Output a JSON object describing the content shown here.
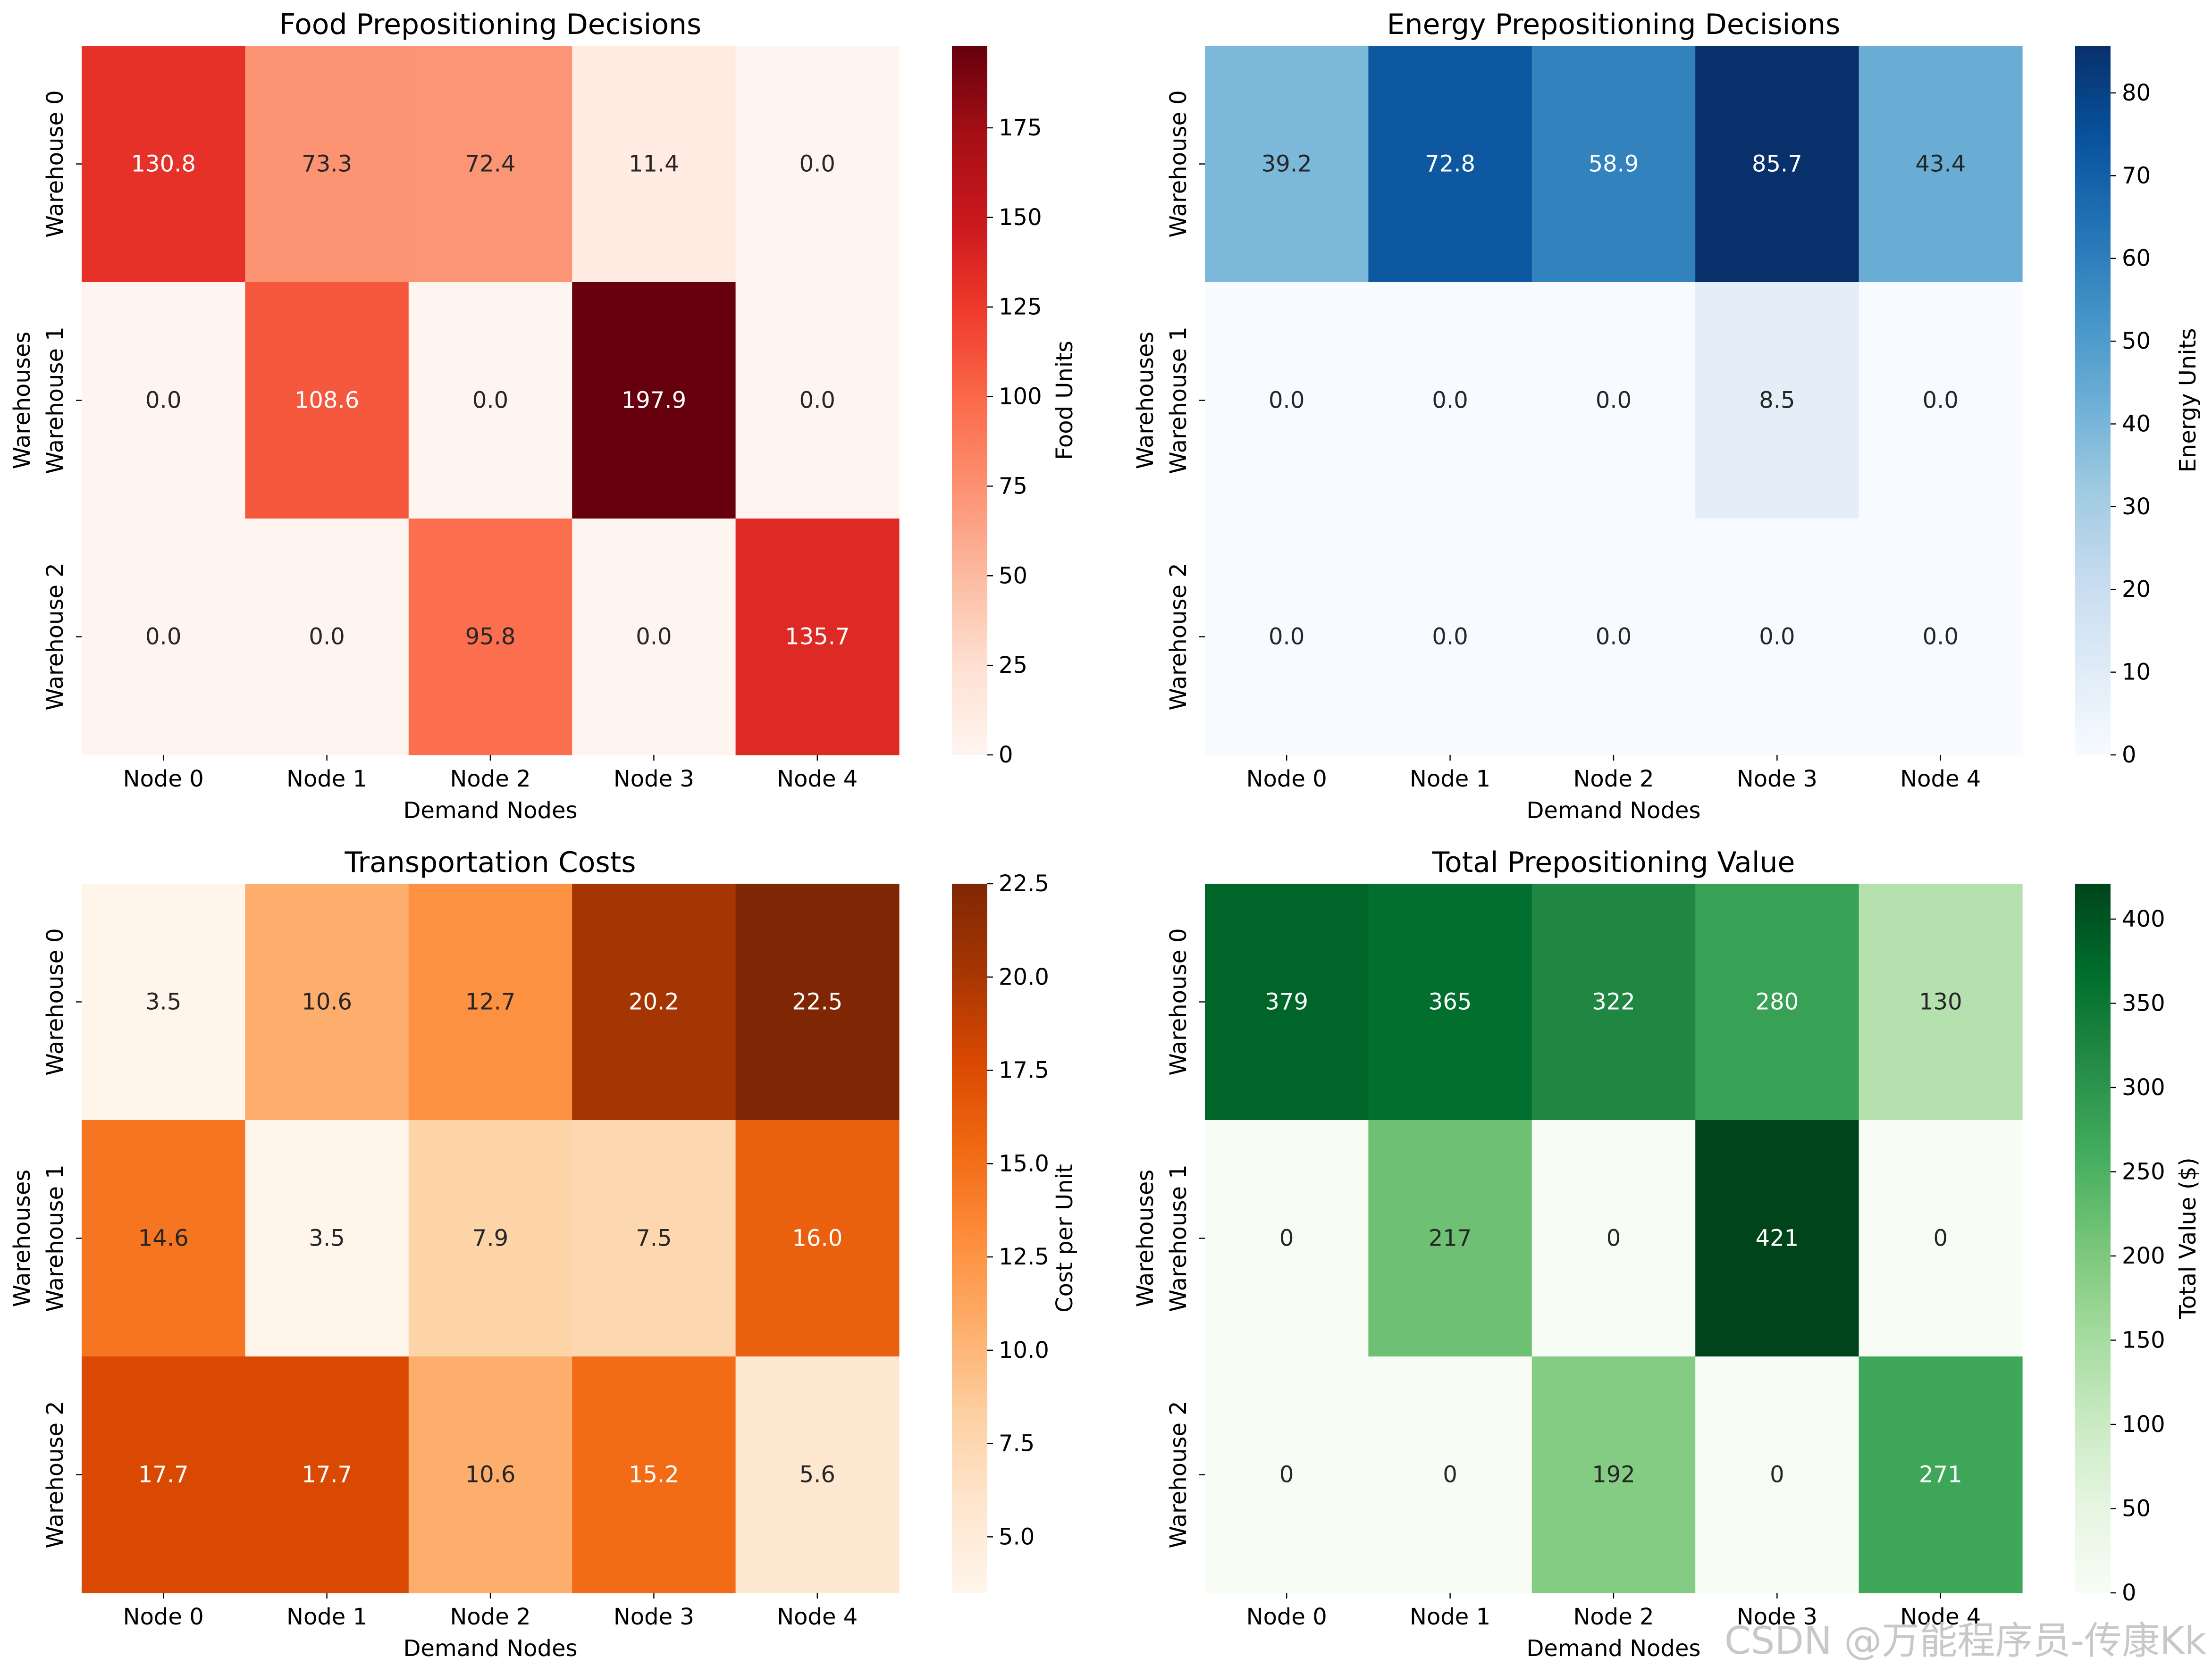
{
  "xlabel": "Demand Nodes",
  "ylabel": "Warehouses",
  "row_labels": [
    "Warehouse 0",
    "Warehouse 1",
    "Warehouse 2"
  ],
  "col_labels": [
    "Node 0",
    "Node 1",
    "Node 2",
    "Node 3",
    "Node 4"
  ],
  "watermark": "CSDN @万能程序员-传康Kk",
  "chart_data": [
    {
      "type": "heatmap",
      "title": "Food Prepositioning Decisions",
      "xlabel": "Demand Nodes",
      "ylabel": "Warehouses",
      "rows": [
        "Warehouse 0",
        "Warehouse 1",
        "Warehouse 2"
      ],
      "columns": [
        "Node 0",
        "Node 1",
        "Node 2",
        "Node 3",
        "Node 4"
      ],
      "values": [
        [
          130.8,
          73.3,
          72.4,
          11.4,
          0.0
        ],
        [
          0.0,
          108.6,
          0.0,
          197.9,
          0.0
        ],
        [
          0.0,
          0.0,
          95.8,
          0.0,
          135.7
        ]
      ],
      "format": 1,
      "colormap": "Reds",
      "colorbar_label": "Food Units",
      "vmin": 0,
      "vmax": 197.9,
      "colorbar_ticks": [
        0,
        25,
        50,
        75,
        100,
        125,
        150,
        175
      ]
    },
    {
      "type": "heatmap",
      "title": "Energy Prepositioning Decisions",
      "xlabel": "Demand Nodes",
      "ylabel": "Warehouses",
      "rows": [
        "Warehouse 0",
        "Warehouse 1",
        "Warehouse 2"
      ],
      "columns": [
        "Node 0",
        "Node 1",
        "Node 2",
        "Node 3",
        "Node 4"
      ],
      "values": [
        [
          39.2,
          72.8,
          58.9,
          85.7,
          43.4
        ],
        [
          0.0,
          0.0,
          0.0,
          8.5,
          0.0
        ],
        [
          0.0,
          0.0,
          0.0,
          0.0,
          0.0
        ]
      ],
      "format": 1,
      "colormap": "Blues",
      "colorbar_label": "Energy Units",
      "vmin": 0,
      "vmax": 85.7,
      "colorbar_ticks": [
        0,
        10,
        20,
        30,
        40,
        50,
        60,
        70,
        80
      ]
    },
    {
      "type": "heatmap",
      "title": "Transportation Costs",
      "xlabel": "Demand Nodes",
      "ylabel": "Warehouses",
      "rows": [
        "Warehouse 0",
        "Warehouse 1",
        "Warehouse 2"
      ],
      "columns": [
        "Node 0",
        "Node 1",
        "Node 2",
        "Node 3",
        "Node 4"
      ],
      "values": [
        [
          3.5,
          10.6,
          12.7,
          20.2,
          22.5
        ],
        [
          14.6,
          3.5,
          7.9,
          7.5,
          16.0
        ],
        [
          17.7,
          17.7,
          10.6,
          15.2,
          5.6
        ]
      ],
      "format": 1,
      "colormap": "Oranges",
      "colorbar_label": "Cost per Unit",
      "vmin": 3.5,
      "vmax": 22.5,
      "colorbar_ticks": [
        5.0,
        7.5,
        10.0,
        12.5,
        15.0,
        17.5,
        20.0,
        22.5
      ]
    },
    {
      "type": "heatmap",
      "title": "Total Prepositioning Value",
      "xlabel": "Demand Nodes",
      "ylabel": "Warehouses",
      "rows": [
        "Warehouse 0",
        "Warehouse 1",
        "Warehouse 2"
      ],
      "columns": [
        "Node 0",
        "Node 1",
        "Node 2",
        "Node 3",
        "Node 4"
      ],
      "values": [
        [
          379,
          365,
          322,
          280,
          130
        ],
        [
          0,
          217,
          0,
          421,
          0
        ],
        [
          0,
          0,
          192,
          0,
          271
        ]
      ],
      "format": 0,
      "colormap": "Greens",
      "colorbar_label": "Total Value ($)",
      "vmin": 0,
      "vmax": 421,
      "colorbar_ticks": [
        0,
        50,
        100,
        150,
        200,
        250,
        300,
        350,
        400
      ]
    }
  ],
  "colormaps": {
    "Reds": [
      "#fff5f0",
      "#fee0d2",
      "#fcbba1",
      "#fc9272",
      "#fb6a4a",
      "#ef3b2c",
      "#cb181d",
      "#a50f15",
      "#67000d"
    ],
    "Blues": [
      "#f7fbff",
      "#deebf7",
      "#c6dbef",
      "#9ecae1",
      "#6baed6",
      "#4292c6",
      "#2171b5",
      "#08519c",
      "#08306b"
    ],
    "Oranges": [
      "#fff5eb",
      "#fee6ce",
      "#fdd0a2",
      "#fdae6b",
      "#fd8d3c",
      "#f16913",
      "#d94801",
      "#a63603",
      "#7f2704"
    ],
    "Greens": [
      "#f7fcf5",
      "#e5f5e0",
      "#c7e9c0",
      "#a1d99b",
      "#74c476",
      "#41ab5d",
      "#238b45",
      "#006d2c",
      "#00441b"
    ]
  }
}
